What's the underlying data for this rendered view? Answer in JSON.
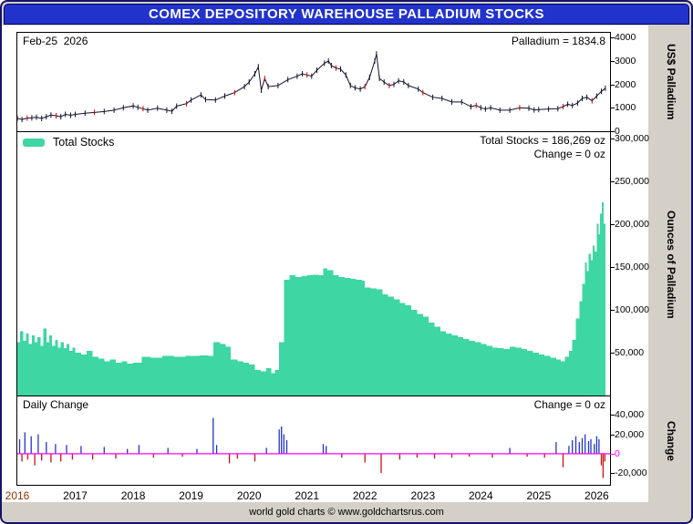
{
  "window": {
    "title": "COMEX DEPOSITORY WAREHOUSE PALLADIUM STOCKS"
  },
  "footer": {
    "caption": "world gold charts © www.goldchartsrus.com"
  },
  "colors": {
    "titlebar_bg": "#2233cc",
    "titlebar_text": "#ffffff",
    "frame_border": "#141466",
    "outer_bg": "#d4d0c8",
    "panel_bg": "#ffffff",
    "price_line": "#11112b",
    "price_alt": "#cc0000",
    "stocks_fill": "#3ed6a2",
    "bar_positive": "#2233cc",
    "bar_negative": "#cc1111",
    "zero_line": "#ff00ff",
    "tick_text": "#000000",
    "xtick_first": "#993300"
  },
  "panels": {
    "price": {
      "date_label": "Feb-25  2026",
      "value_label": "Palladium = 1834.8",
      "axis_title": "US$ Palladium",
      "ylim": [
        0,
        4200
      ],
      "yticks": [
        {
          "v": 0,
          "label": "0"
        },
        {
          "v": 1000,
          "label": "1000"
        },
        {
          "v": 2000,
          "label": "2000"
        },
        {
          "v": 3000,
          "label": "3000"
        },
        {
          "v": 4000,
          "label": "4000"
        }
      ]
    },
    "stocks": {
      "legend_label": "Total Stocks",
      "value_label": "Total Stocks = 186,269 oz",
      "change_label": "Change = 0 oz",
      "axis_title": "Ounces of Palladium",
      "ylim": [
        0,
        307000
      ],
      "yticks": [
        {
          "v": 50000,
          "label": "50,000"
        },
        {
          "v": 100000,
          "label": "100,000"
        },
        {
          "v": 150000,
          "label": "150,000"
        },
        {
          "v": 200000,
          "label": "200,000"
        },
        {
          "v": 250000,
          "label": "250,000"
        },
        {
          "v": 300000,
          "label": "300,000"
        }
      ]
    },
    "daily": {
      "label": "Daily Change",
      "value_label": "Change = 0 oz",
      "axis_title": "Change",
      "ylim": [
        -32000,
        59000
      ],
      "yticks": [
        {
          "v": 40000,
          "label": "40,000"
        },
        {
          "v": 20000,
          "label": "20,000"
        },
        {
          "v": 0,
          "label": "0",
          "color": "#ff00ff"
        },
        {
          "v": -20000,
          "label": "-20,000"
        }
      ]
    }
  },
  "xaxis": {
    "min": 2016.0,
    "max": 2026.23,
    "ticks": [
      {
        "v": 2016,
        "label": "2016",
        "color": "#993300"
      },
      {
        "v": 2017,
        "label": "2017"
      },
      {
        "v": 2018,
        "label": "2018"
      },
      {
        "v": 2019,
        "label": "2019"
      },
      {
        "v": 2020,
        "label": "2020"
      },
      {
        "v": 2021,
        "label": "2021"
      },
      {
        "v": 2022,
        "label": "2022"
      },
      {
        "v": 2023,
        "label": "2023"
      },
      {
        "v": 2024,
        "label": "2024"
      },
      {
        "v": 2025,
        "label": "2025"
      },
      {
        "v": 2026,
        "label": "2026"
      }
    ]
  },
  "chart_data": [
    {
      "type": "line",
      "name": "Palladium Price",
      "panel": "price",
      "units": "US$",
      "x": [
        2016.0,
        2016.08,
        2016.17,
        2016.25,
        2016.33,
        2016.42,
        2016.5,
        2016.58,
        2016.67,
        2016.75,
        2016.83,
        2016.92,
        2017.0,
        2017.17,
        2017.33,
        2017.5,
        2017.67,
        2017.83,
        2018.0,
        2018.08,
        2018.17,
        2018.25,
        2018.42,
        2018.58,
        2018.67,
        2018.75,
        2018.92,
        2019.0,
        2019.17,
        2019.25,
        2019.42,
        2019.58,
        2019.75,
        2019.92,
        2020.0,
        2020.1,
        2020.16,
        2020.21,
        2020.27,
        2020.33,
        2020.5,
        2020.67,
        2020.83,
        2020.92,
        2021.0,
        2021.08,
        2021.17,
        2021.3,
        2021.37,
        2021.42,
        2021.5,
        2021.58,
        2021.67,
        2021.75,
        2021.83,
        2021.92,
        2022.0,
        2022.08,
        2022.17,
        2022.2,
        2022.25,
        2022.33,
        2022.42,
        2022.5,
        2022.58,
        2022.67,
        2022.75,
        2022.92,
        2023.0,
        2023.17,
        2023.33,
        2023.5,
        2023.67,
        2023.83,
        2023.92,
        2024.0,
        2024.08,
        2024.17,
        2024.33,
        2024.5,
        2024.67,
        2024.83,
        2024.92,
        2025.0,
        2025.17,
        2025.33,
        2025.42,
        2025.5,
        2025.58,
        2025.67,
        2025.75,
        2025.83,
        2025.92,
        2026.0,
        2026.08,
        2026.15
      ],
      "y": [
        550,
        500,
        560,
        570,
        600,
        545,
        620,
        690,
        660,
        620,
        720,
        680,
        720,
        770,
        800,
        840,
        900,
        1000,
        1080,
        1020,
        960,
        900,
        980,
        900,
        850,
        1070,
        1180,
        1330,
        1550,
        1350,
        1330,
        1500,
        1650,
        1900,
        2100,
        2450,
        2750,
        1750,
        2250,
        1900,
        1950,
        2200,
        2350,
        2450,
        2400,
        2350,
        2600,
        2900,
        3000,
        2800,
        2700,
        2650,
        2400,
        1950,
        1850,
        1800,
        1900,
        2300,
        3000,
        3300,
        2250,
        2100,
        1950,
        2000,
        2150,
        2100,
        1950,
        1800,
        1650,
        1450,
        1400,
        1250,
        1250,
        1050,
        1100,
        1000,
        950,
        1000,
        900,
        900,
        1000,
        980,
        910,
        920,
        950,
        960,
        1050,
        1150,
        1100,
        1200,
        1400,
        1450,
        1300,
        1500,
        1700,
        1834.8
      ]
    },
    {
      "type": "area",
      "name": "Total Stocks",
      "panel": "stocks",
      "units": "oz",
      "step": true,
      "x": [
        2016.0,
        2016.05,
        2016.1,
        2016.15,
        2016.2,
        2016.25,
        2016.3,
        2016.35,
        2016.4,
        2016.45,
        2016.5,
        2016.55,
        2016.6,
        2016.65,
        2016.7,
        2016.75,
        2016.8,
        2016.85,
        2016.9,
        2016.95,
        2017.0,
        2017.1,
        2017.2,
        2017.3,
        2017.4,
        2017.5,
        2017.6,
        2017.7,
        2017.8,
        2017.9,
        2018.0,
        2018.15,
        2018.3,
        2018.5,
        2018.7,
        2018.9,
        2019.0,
        2019.15,
        2019.3,
        2019.38,
        2019.5,
        2019.6,
        2019.68,
        2019.8,
        2019.9,
        2020.0,
        2020.1,
        2020.2,
        2020.3,
        2020.38,
        2020.45,
        2020.52,
        2020.6,
        2020.7,
        2020.8,
        2020.9,
        2021.0,
        2021.1,
        2021.2,
        2021.28,
        2021.35,
        2021.45,
        2021.55,
        2021.65,
        2021.75,
        2021.85,
        2021.95,
        2022.0,
        2022.1,
        2022.2,
        2022.3,
        2022.4,
        2022.5,
        2022.6,
        2022.7,
        2022.8,
        2022.9,
        2023.0,
        2023.1,
        2023.2,
        2023.3,
        2023.4,
        2023.5,
        2023.6,
        2023.7,
        2023.8,
        2023.9,
        2024.0,
        2024.1,
        2024.2,
        2024.3,
        2024.4,
        2024.5,
        2024.6,
        2024.7,
        2024.8,
        2024.9,
        2025.0,
        2025.1,
        2025.2,
        2025.3,
        2025.38,
        2025.45,
        2025.52,
        2025.58,
        2025.64,
        2025.7,
        2025.75,
        2025.8,
        2025.83,
        2025.86,
        2025.9,
        2025.93,
        2025.96,
        2026.0,
        2026.03,
        2026.06,
        2026.09,
        2026.12,
        2026.15
      ],
      "y": [
        62000,
        75000,
        64000,
        72000,
        60000,
        70000,
        62000,
        68000,
        58000,
        78000,
        62000,
        70000,
        58000,
        65000,
        56000,
        62000,
        55000,
        60000,
        52000,
        56000,
        50000,
        48000,
        52000,
        45000,
        43000,
        40000,
        42000,
        38000,
        40000,
        37000,
        38000,
        45000,
        44000,
        46000,
        45000,
        46000,
        46000,
        47000,
        46000,
        62000,
        60000,
        57000,
        42000,
        40000,
        38000,
        36000,
        30000,
        28000,
        32000,
        26000,
        30000,
        62000,
        135000,
        140000,
        138000,
        139000,
        140000,
        141000,
        140000,
        148000,
        146000,
        140000,
        138000,
        137000,
        136000,
        135000,
        134000,
        126000,
        125000,
        124000,
        118000,
        115000,
        112000,
        108000,
        105000,
        100000,
        95000,
        92000,
        85000,
        80000,
        75000,
        72000,
        70000,
        68000,
        66000,
        64000,
        62000,
        60000,
        58000,
        56000,
        55000,
        54000,
        57000,
        56000,
        54000,
        52000,
        50000,
        48000,
        46000,
        44000,
        42000,
        40000,
        45000,
        52000,
        65000,
        90000,
        110000,
        130000,
        155000,
        145000,
        165000,
        158000,
        175000,
        168000,
        200000,
        188000,
        212000,
        225000,
        200000,
        186269
      ]
    },
    {
      "type": "bar",
      "name": "Daily Change",
      "panel": "daily",
      "units": "oz",
      "x": [
        2016.04,
        2016.08,
        2016.13,
        2016.18,
        2016.24,
        2016.3,
        2016.36,
        2016.42,
        2016.5,
        2016.58,
        2016.66,
        2016.75,
        2016.85,
        2016.95,
        2017.1,
        2017.3,
        2017.5,
        2017.7,
        2017.9,
        2018.1,
        2018.35,
        2018.6,
        2018.85,
        2019.1,
        2019.38,
        2019.44,
        2019.66,
        2019.8,
        2020.1,
        2020.3,
        2020.52,
        2020.56,
        2020.6,
        2020.65,
        2021.28,
        2021.33,
        2021.6,
        2022.0,
        2022.28,
        2022.6,
        2022.9,
        2023.2,
        2023.5,
        2023.8,
        2024.2,
        2024.5,
        2024.8,
        2025.1,
        2025.3,
        2025.42,
        2025.52,
        2025.58,
        2025.64,
        2025.7,
        2025.75,
        2025.8,
        2025.86,
        2025.9,
        2025.96,
        2026.0,
        2026.04,
        2026.08,
        2026.11,
        2026.14
      ],
      "y": [
        15000,
        -8000,
        22000,
        -6000,
        18000,
        -12000,
        20000,
        -7000,
        12000,
        -9000,
        10000,
        -8000,
        9000,
        -6000,
        8000,
        -6000,
        7000,
        -5000,
        5000,
        9000,
        -4000,
        6000,
        -3000,
        5000,
        37000,
        9000,
        -10000,
        -5000,
        -8000,
        6000,
        25000,
        28000,
        20000,
        14000,
        10000,
        8000,
        -4000,
        -9000,
        -20000,
        -6000,
        -4000,
        -5000,
        -4000,
        -3000,
        -4000,
        6000,
        -3000,
        -4000,
        12000,
        -14000,
        8000,
        14000,
        18000,
        12000,
        16000,
        20000,
        13000,
        15000,
        10000,
        18000,
        15000,
        -12000,
        -25000,
        -8000
      ]
    }
  ]
}
